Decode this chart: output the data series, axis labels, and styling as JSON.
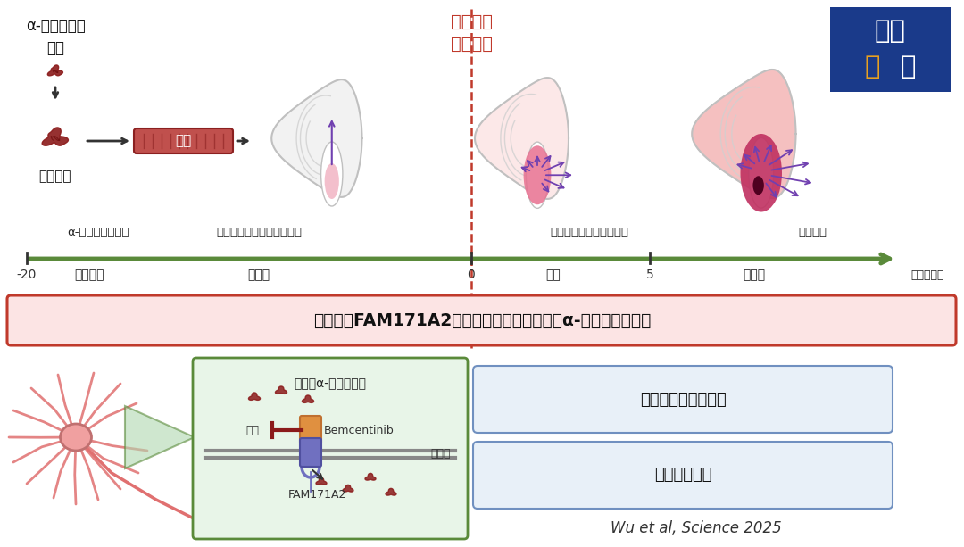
{
  "bg_color": "#ffffff",
  "title_text": "帕金森病\n临床确评",
  "title_color": "#c0392b",
  "logo_bg": "#1a3a8a",
  "logo_text1": "央视",
  "logo_text2_char1": "新",
  "logo_text2_char2": "闻",
  "logo_text2_color": "#e8a020",
  "alpha_monomer_label": "α-突触核蛋白\n单体",
  "wrong_fold_label": "错误折叠",
  "fiber_label": "纤维",
  "symptom1": "α-突触核蛋白聚集",
  "symptom2": "嗅觉减退、便秘和睡眠障碍",
  "symptom3": "运动迟缓、震颧和肌强直",
  "symptom4": "认知障碍",
  "stage1": "临床前期",
  "stage2": "前驱期",
  "stage3": "早期",
  "stage4": "进展期",
  "disease_course": "病程（年）",
  "arrow_box_text": "开发靶向FAM171A2药物，抑制疾病全周期中α-突触核蛋白传播",
  "arrow_box_bg": "#fce4e4",
  "arrow_box_border": "#c0392b",
  "cell_box_title": "病理性α-突触核蛋白",
  "inhibit_label": "抑制",
  "bemcentinib_label": "Bemcentinib",
  "membrane_label": "细胞膜",
  "fam171a2_label": "FAM171A2",
  "treatment1": "补充多巴胺药物治疗",
  "treatment2": "安装脑起摸器",
  "citation": "Wu et al, Science 2025",
  "green_arrow_color": "#5a8a3a",
  "dashed_line_color": "#c0392b",
  "cell_box_bg": "#e8f5e8",
  "cell_box_border": "#5a8a3a",
  "treatment_box_bg": "#e8f0f8",
  "treatment_box_border": "#7090c0",
  "dark_red": "#8b1a1a",
  "pink_protein": "#c0504d",
  "purple_arrow": "#7040b0",
  "neuron_color": "#e07070",
  "fig_w": 10.8,
  "fig_h": 6.13,
  "dpi": 100
}
